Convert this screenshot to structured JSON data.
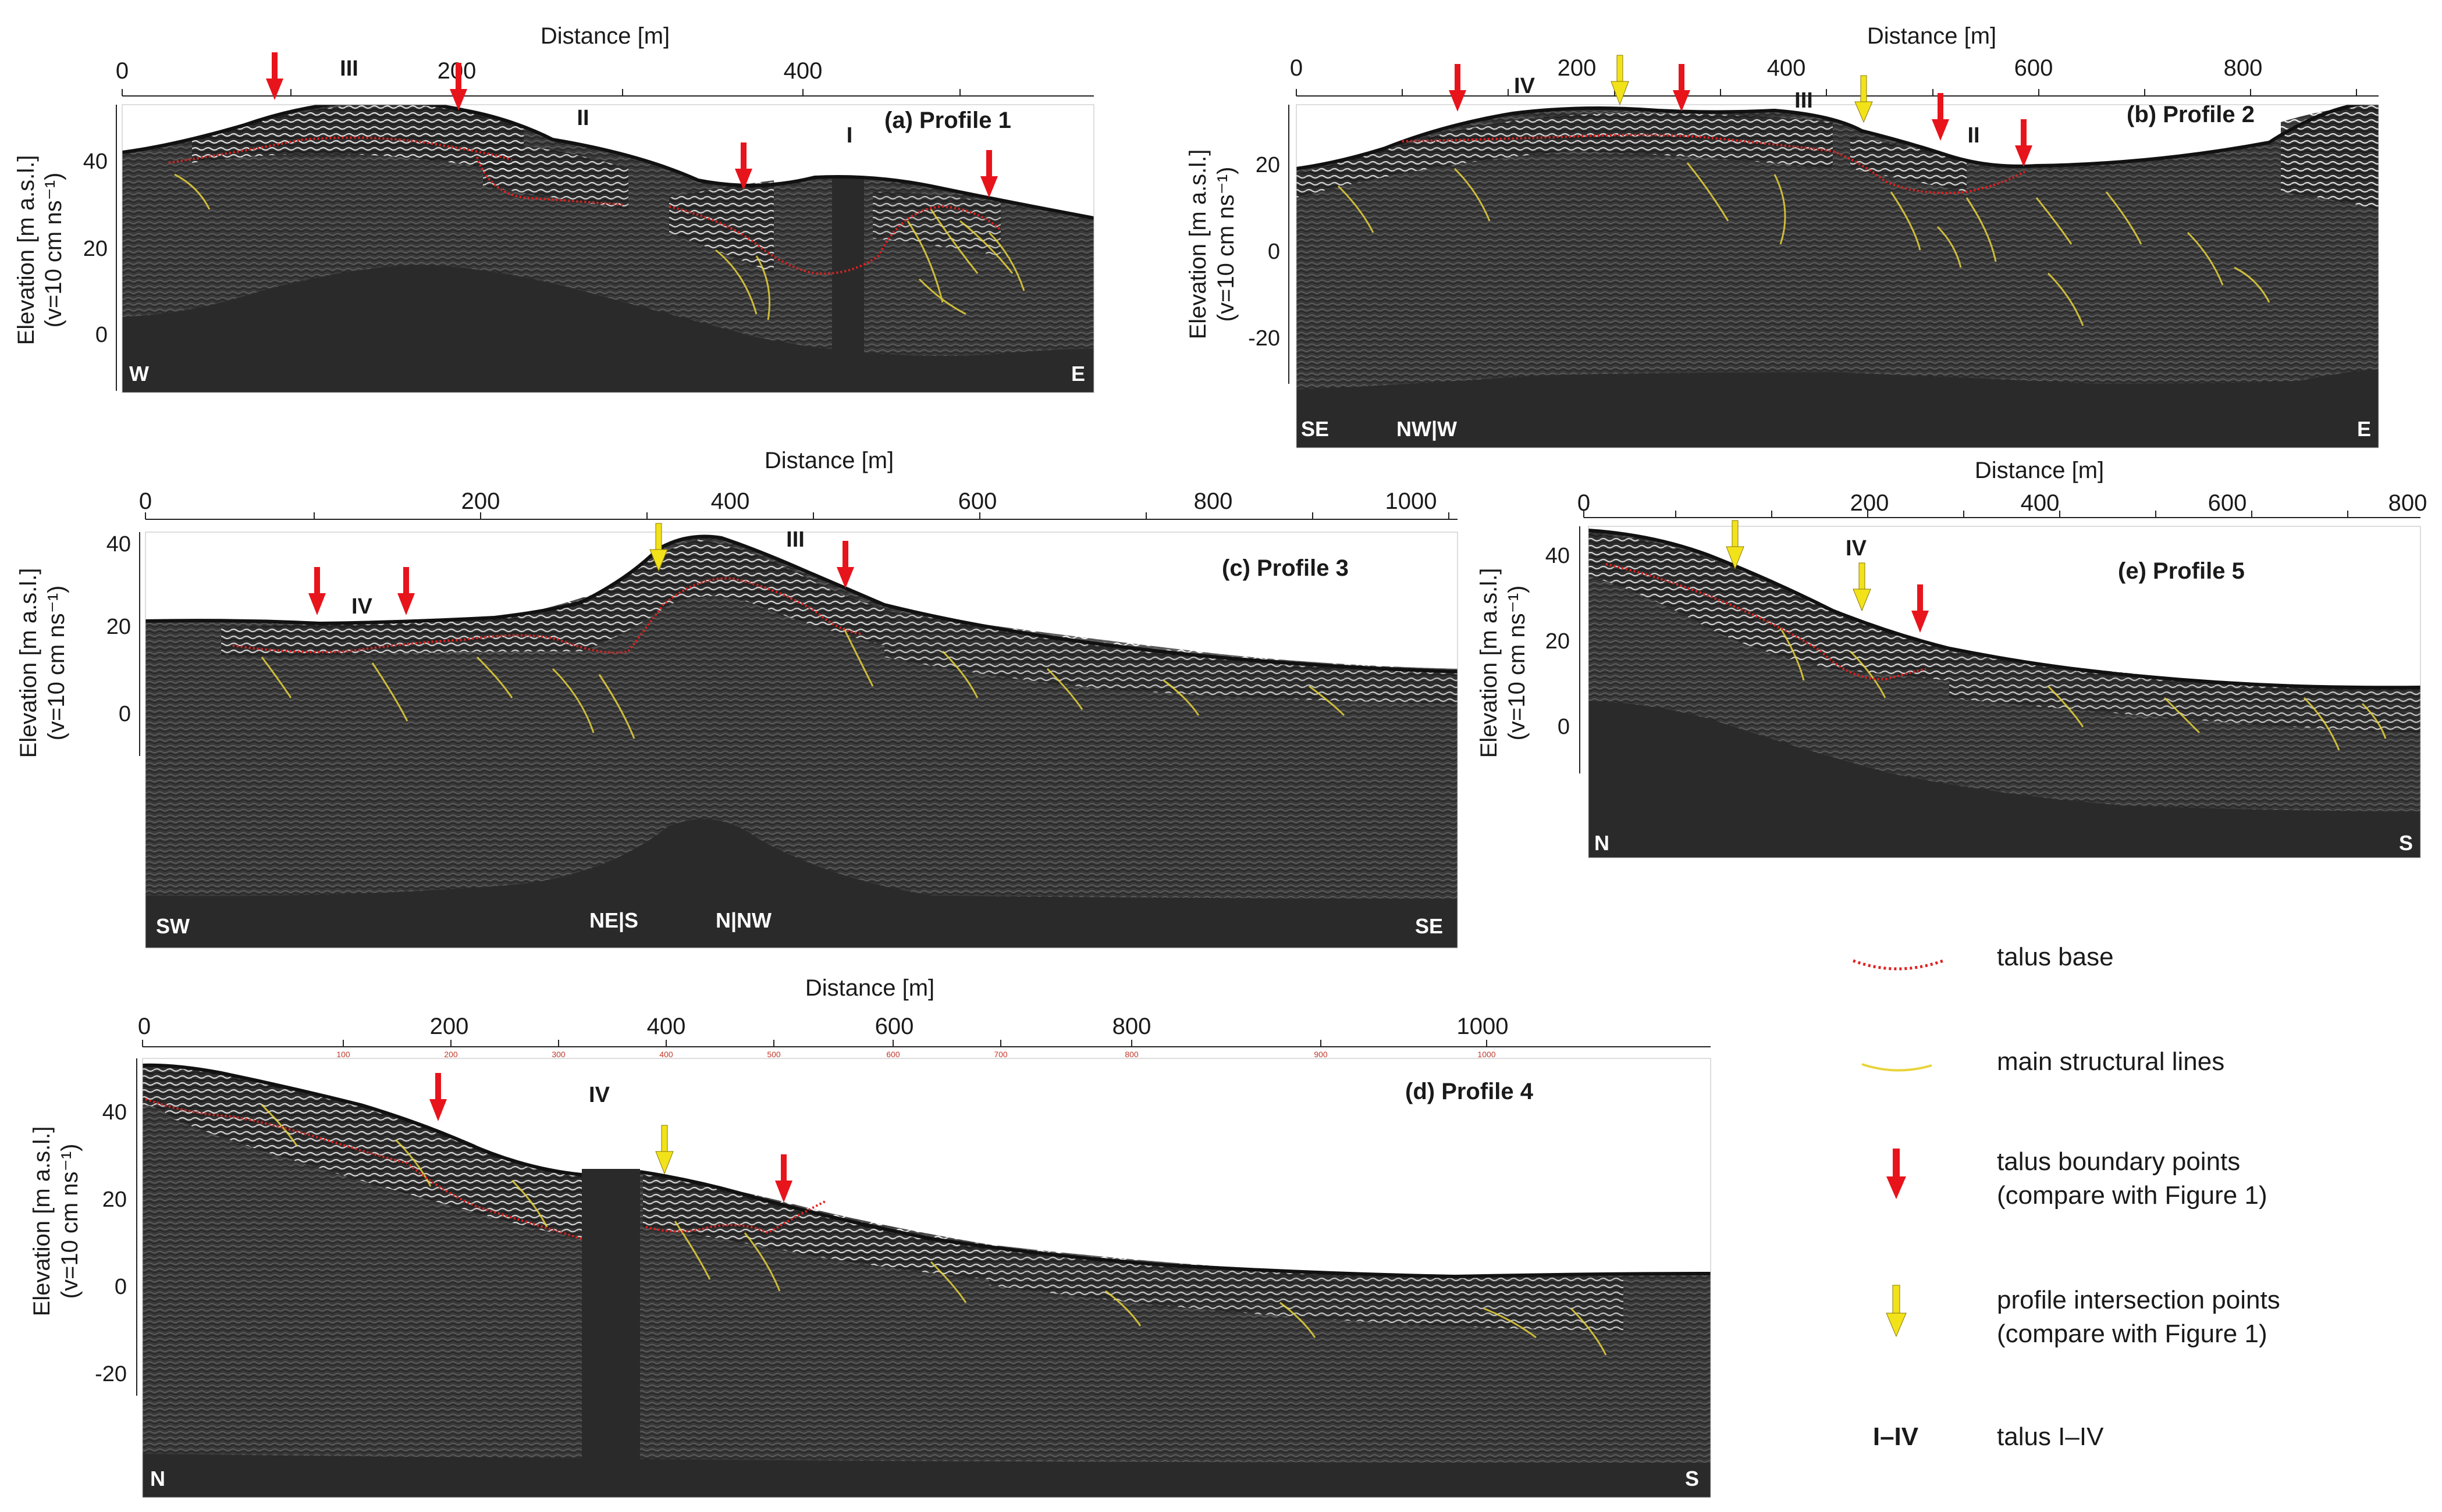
{
  "axis_title": "Distance [m]",
  "elev_title": "Elevation [m a.s.l.]",
  "velocity_title": "(v=10 cm ns⁻¹)",
  "colors": {
    "talus_base": "#e02020",
    "structural": "#e8d43a",
    "red_arrow": "#e8141b",
    "yellow_arrow": "#f2e21a",
    "radar_bg": "#3a3a3a",
    "deep": "#2a2a2a"
  },
  "panels": [
    {
      "id": "a",
      "title": "(a) Profile 1",
      "dist_ticks": [
        "0",
        "200",
        "400"
      ],
      "elev_ticks": [
        "40",
        "20",
        "0"
      ],
      "left_label": "W",
      "right_label": "E",
      "talus": [
        "III",
        "II",
        "I"
      ],
      "red_arrows": 4,
      "yellow_arrows": 0,
      "mid_labels": []
    },
    {
      "id": "b",
      "title": "(b) Profile 2",
      "dist_ticks": [
        "0",
        "200",
        "400",
        "600",
        "800"
      ],
      "elev_ticks": [
        "20",
        "0",
        "-20"
      ],
      "left_label": "SE",
      "right_label": "E",
      "talus": [
        "IV",
        "III",
        "II"
      ],
      "red_arrows": 4,
      "yellow_arrows": 2,
      "mid_labels": [
        "NW|W"
      ]
    },
    {
      "id": "c",
      "title": "(c) Profile 3",
      "dist_ticks": [
        "0",
        "200",
        "400",
        "600",
        "800",
        "1000"
      ],
      "elev_ticks": [
        "40",
        "20",
        "0"
      ],
      "left_label": "SW",
      "right_label": "SE",
      "talus": [
        "IV",
        "III"
      ],
      "red_arrows": 3,
      "yellow_arrows": 1,
      "mid_labels": [
        "NE|S",
        "N|NW"
      ]
    },
    {
      "id": "d",
      "title": "(d) Profile 4",
      "dist_ticks": [
        "0",
        "200",
        "400",
        "600",
        "800",
        "1000"
      ],
      "elev_ticks": [
        "40",
        "20",
        "0",
        "-20"
      ],
      "left_label": "N",
      "right_label": "S",
      "talus": [
        "IV"
      ],
      "red_arrows": 2,
      "yellow_arrows": 1,
      "mid_labels": [],
      "small_ticks": [
        "100",
        "200",
        "300",
        "400",
        "500",
        "600",
        "700",
        "800",
        "900",
        "1000"
      ]
    },
    {
      "id": "e",
      "title": "(e) Profile 5",
      "dist_ticks": [
        "0",
        "200",
        "400",
        "600",
        "800"
      ],
      "elev_ticks": [
        "40",
        "20",
        "0"
      ],
      "left_label": "N",
      "right_label": "S",
      "talus": [
        "IV"
      ],
      "red_arrows": 1,
      "yellow_arrows": 2,
      "mid_labels": []
    }
  ],
  "legend": {
    "talus_base": "talus base",
    "structural": "main structural lines",
    "boundary_1": "talus boundary points",
    "boundary_2": "(compare with Figure 1)",
    "intersection_1": "profile intersection points",
    "intersection_2": "(compare with Figure 1)",
    "talus_symbol": "I–IV",
    "talus_text": "talus I–IV"
  }
}
